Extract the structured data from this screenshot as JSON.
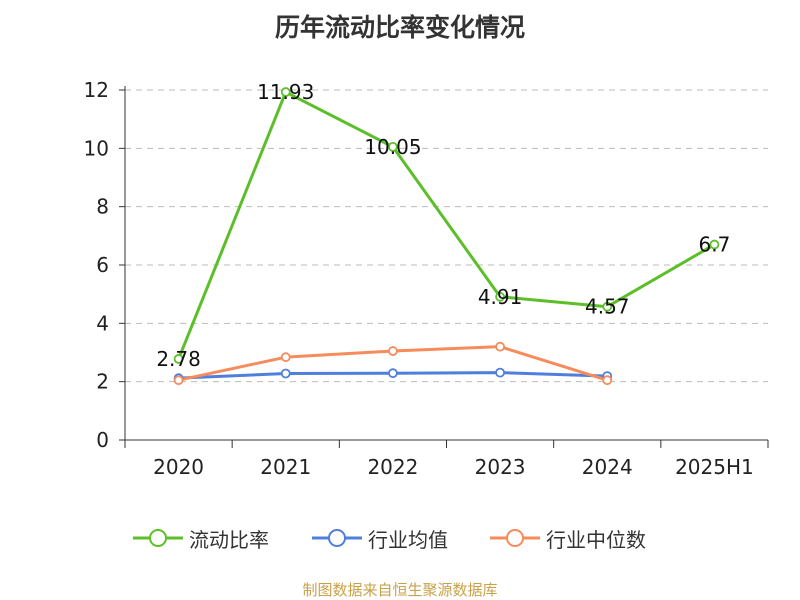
{
  "chart_data": {
    "type": "line",
    "title": "历年流动比率变化情况",
    "categories": [
      "2020",
      "2021",
      "2022",
      "2023",
      "2024",
      "2025H1"
    ],
    "ylim": [
      0,
      12
    ],
    "yticks": [
      0,
      2,
      4,
      6,
      8,
      10,
      12
    ],
    "grid": true,
    "legend_position": "bottom",
    "series": [
      {
        "name": "流动比率",
        "color": "#5cbf2a",
        "values": [
          2.78,
          11.93,
          10.05,
          4.91,
          4.57,
          6.7
        ],
        "labels": [
          "2.78",
          "11.93",
          "10.05",
          "4.91",
          "4.57",
          "6.7"
        ]
      },
      {
        "name": "行业均值",
        "color": "#4f7fdc",
        "values": [
          2.12,
          2.28,
          2.29,
          2.31,
          2.19,
          null
        ]
      },
      {
        "name": "行业中位数",
        "color": "#f68b5c",
        "values": [
          2.05,
          2.84,
          3.05,
          3.2,
          2.05,
          null
        ]
      }
    ]
  },
  "footer": {
    "source": "制图数据来自恒生聚源数据库",
    "source_color": "#c8a24a"
  }
}
